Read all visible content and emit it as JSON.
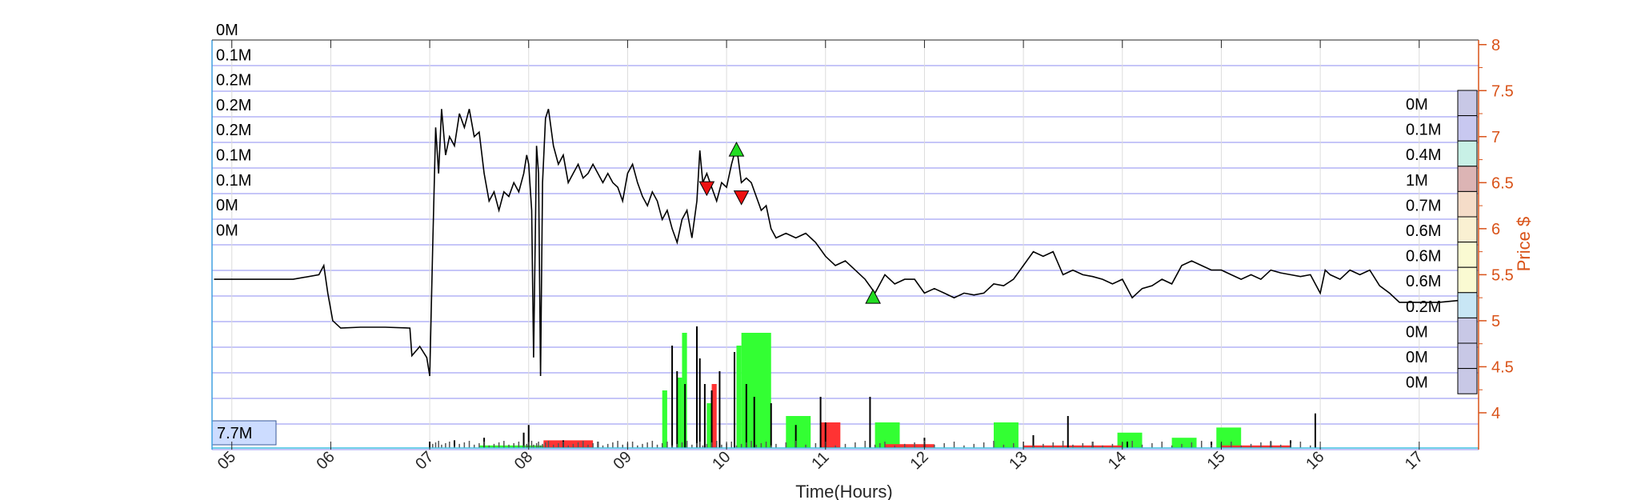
{
  "chart_data": {
    "type": "line",
    "title": "",
    "xlabel": "Time(Hours)",
    "ylabel": "Price $",
    "x_ticks": [
      "05",
      "06",
      "07",
      "08",
      "09",
      "10",
      "11",
      "12",
      "13",
      "14",
      "15",
      "16",
      "17"
    ],
    "x_range": [
      4.8,
      17.6
    ],
    "y_ticks": [
      "8",
      "7.5",
      "7",
      "6.5",
      "6",
      "5.5",
      "5",
      "4.5",
      "4"
    ],
    "y_range": [
      3.6,
      8.05
    ],
    "grid": true,
    "total_volume_label": "7.7M",
    "left_volume_labels": [
      "0M",
      "0.1M",
      "0.2M",
      "0.2M",
      "0.2M",
      "0.1M",
      "0.1M",
      "0M",
      "0M"
    ],
    "volume_profile": [
      {
        "label": "0M",
        "price": 7.35,
        "color": "#c8c8e6"
      },
      {
        "label": "0.1M",
        "price": 7.07,
        "color": "#c8c8f0"
      },
      {
        "label": "0.4M",
        "price": 6.79,
        "color": "#c8f0e6"
      },
      {
        "label": "1M",
        "price": 6.51,
        "color": "#dcb4b4"
      },
      {
        "label": "0.7M",
        "price": 6.23,
        "color": "#f5dcc8"
      },
      {
        "label": "0.6M",
        "price": 5.95,
        "color": "#faf0d2"
      },
      {
        "label": "0.6M",
        "price": 5.67,
        "color": "#fafad2"
      },
      {
        "label": "0.6M",
        "price": 5.39,
        "color": "#fafad2"
      },
      {
        "label": "0.2M",
        "price": 5.11,
        "color": "#c8e6f5"
      },
      {
        "label": "0M",
        "price": 4.83,
        "color": "#c8c8e6"
      },
      {
        "label": "0M",
        "price": 4.55,
        "color": "#c8c8e6"
      },
      {
        "label": "0M",
        "price": 4.27,
        "color": "#c8c8e6"
      }
    ],
    "price_series": {
      "name": "",
      "points": [
        [
          4.82,
          5.45
        ],
        [
          5.55,
          5.45
        ],
        [
          5.62,
          5.45
        ],
        [
          5.88,
          5.5
        ],
        [
          5.93,
          5.6
        ],
        [
          5.97,
          5.3
        ],
        [
          6.02,
          5.0
        ],
        [
          6.1,
          4.92
        ],
        [
          6.3,
          4.93
        ],
        [
          6.55,
          4.93
        ],
        [
          6.8,
          4.92
        ],
        [
          6.82,
          4.62
        ],
        [
          6.9,
          4.72
        ],
        [
          6.97,
          4.6
        ],
        [
          7.0,
          4.4
        ],
        [
          7.03,
          5.8
        ],
        [
          7.06,
          7.1
        ],
        [
          7.09,
          6.6
        ],
        [
          7.12,
          7.3
        ],
        [
          7.16,
          6.8
        ],
        [
          7.2,
          7.0
        ],
        [
          7.25,
          6.9
        ],
        [
          7.3,
          7.25
        ],
        [
          7.35,
          7.1
        ],
        [
          7.4,
          7.3
        ],
        [
          7.45,
          7.0
        ],
        [
          7.5,
          7.05
        ],
        [
          7.55,
          6.6
        ],
        [
          7.6,
          6.3
        ],
        [
          7.65,
          6.4
        ],
        [
          7.7,
          6.2
        ],
        [
          7.75,
          6.4
        ],
        [
          7.8,
          6.35
        ],
        [
          7.85,
          6.5
        ],
        [
          7.9,
          6.4
        ],
        [
          7.95,
          6.6
        ],
        [
          7.98,
          6.8
        ],
        [
          8.0,
          6.7
        ],
        [
          8.03,
          6.2
        ],
        [
          8.05,
          4.6
        ],
        [
          8.08,
          6.9
        ],
        [
          8.1,
          6.6
        ],
        [
          8.12,
          4.4
        ],
        [
          8.14,
          6.5
        ],
        [
          8.17,
          7.2
        ],
        [
          8.2,
          7.3
        ],
        [
          8.25,
          6.9
        ],
        [
          8.3,
          6.7
        ],
        [
          8.35,
          6.8
        ],
        [
          8.4,
          6.5
        ],
        [
          8.45,
          6.6
        ],
        [
          8.5,
          6.7
        ],
        [
          8.55,
          6.55
        ],
        [
          8.6,
          6.6
        ],
        [
          8.65,
          6.7
        ],
        [
          8.7,
          6.6
        ],
        [
          8.75,
          6.5
        ],
        [
          8.8,
          6.6
        ],
        [
          8.85,
          6.5
        ],
        [
          8.9,
          6.45
        ],
        [
          8.95,
          6.3
        ],
        [
          9.0,
          6.6
        ],
        [
          9.05,
          6.7
        ],
        [
          9.1,
          6.5
        ],
        [
          9.15,
          6.35
        ],
        [
          9.2,
          6.25
        ],
        [
          9.25,
          6.4
        ],
        [
          9.3,
          6.3
        ],
        [
          9.35,
          6.1
        ],
        [
          9.4,
          6.2
        ],
        [
          9.45,
          6.0
        ],
        [
          9.5,
          5.85
        ],
        [
          9.55,
          6.1
        ],
        [
          9.6,
          6.2
        ],
        [
          9.65,
          5.9
        ],
        [
          9.7,
          6.3
        ],
        [
          9.73,
          6.85
        ],
        [
          9.76,
          6.5
        ],
        [
          9.8,
          6.6
        ],
        [
          9.85,
          6.45
        ],
        [
          9.9,
          6.3
        ],
        [
          9.95,
          6.5
        ],
        [
          10.0,
          6.45
        ],
        [
          10.05,
          6.7
        ],
        [
          10.1,
          6.9
        ],
        [
          10.15,
          6.5
        ],
        [
          10.2,
          6.55
        ],
        [
          10.25,
          6.5
        ],
        [
          10.3,
          6.35
        ],
        [
          10.35,
          6.2
        ],
        [
          10.4,
          6.25
        ],
        [
          10.45,
          6.0
        ],
        [
          10.5,
          5.9
        ],
        [
          10.6,
          5.95
        ],
        [
          10.7,
          5.9
        ],
        [
          10.8,
          5.95
        ],
        [
          10.9,
          5.85
        ],
        [
          11.0,
          5.7
        ],
        [
          11.1,
          5.6
        ],
        [
          11.2,
          5.65
        ],
        [
          11.3,
          5.55
        ],
        [
          11.4,
          5.45
        ],
        [
          11.5,
          5.3
        ],
        [
          11.55,
          5.4
        ],
        [
          11.6,
          5.5
        ],
        [
          11.7,
          5.4
        ],
        [
          11.8,
          5.45
        ],
        [
          11.9,
          5.45
        ],
        [
          12.0,
          5.3
        ],
        [
          12.1,
          5.35
        ],
        [
          12.2,
          5.3
        ],
        [
          12.3,
          5.25
        ],
        [
          12.4,
          5.3
        ],
        [
          12.5,
          5.28
        ],
        [
          12.6,
          5.3
        ],
        [
          12.7,
          5.4
        ],
        [
          12.8,
          5.38
        ],
        [
          12.9,
          5.45
        ],
        [
          13.0,
          5.6
        ],
        [
          13.1,
          5.75
        ],
        [
          13.2,
          5.7
        ],
        [
          13.3,
          5.75
        ],
        [
          13.4,
          5.5
        ],
        [
          13.5,
          5.55
        ],
        [
          13.6,
          5.5
        ],
        [
          13.7,
          5.48
        ],
        [
          13.8,
          5.45
        ],
        [
          13.9,
          5.4
        ],
        [
          14.0,
          5.45
        ],
        [
          14.1,
          5.25
        ],
        [
          14.2,
          5.35
        ],
        [
          14.3,
          5.38
        ],
        [
          14.4,
          5.45
        ],
        [
          14.5,
          5.4
        ],
        [
          14.6,
          5.6
        ],
        [
          14.7,
          5.65
        ],
        [
          14.8,
          5.6
        ],
        [
          14.9,
          5.55
        ],
        [
          15.0,
          5.55
        ],
        [
          15.1,
          5.5
        ],
        [
          15.2,
          5.45
        ],
        [
          15.3,
          5.5
        ],
        [
          15.4,
          5.45
        ],
        [
          15.5,
          5.55
        ],
        [
          15.6,
          5.52
        ],
        [
          15.7,
          5.5
        ],
        [
          15.8,
          5.48
        ],
        [
          15.9,
          5.5
        ],
        [
          16.0,
          5.3
        ],
        [
          16.05,
          5.55
        ],
        [
          16.1,
          5.5
        ],
        [
          16.2,
          5.45
        ],
        [
          16.3,
          5.55
        ],
        [
          16.4,
          5.5
        ],
        [
          16.5,
          5.55
        ],
        [
          16.6,
          5.38
        ],
        [
          16.7,
          5.3
        ],
        [
          16.8,
          5.2
        ],
        [
          17.0,
          5.2
        ],
        [
          17.2,
          5.2
        ],
        [
          17.4,
          5.22
        ],
        [
          17.5,
          5.2
        ]
      ]
    },
    "buy_markers": [
      [
        10.1,
        6.85
      ],
      [
        11.48,
        5.25
      ]
    ],
    "sell_markers": [
      [
        9.8,
        6.45
      ],
      [
        10.15,
        6.35
      ]
    ],
    "volume_bars": {
      "green": [
        [
          7.5,
          8.6,
          0.02
        ],
        [
          9.35,
          9.4,
          0.45
        ],
        [
          9.5,
          9.55,
          0.55
        ],
        [
          9.55,
          9.6,
          0.9
        ],
        [
          9.8,
          9.85,
          0.35
        ],
        [
          10.1,
          10.15,
          0.8
        ],
        [
          10.15,
          10.45,
          0.9
        ],
        [
          10.6,
          10.85,
          0.25
        ],
        [
          11.5,
          11.75,
          0.2
        ],
        [
          12.7,
          12.95,
          0.2
        ],
        [
          13.95,
          14.2,
          0.12
        ],
        [
          14.5,
          14.75,
          0.08
        ],
        [
          14.95,
          15.2,
          0.16
        ]
      ],
      "red": [
        [
          8.15,
          8.65,
          0.06
        ],
        [
          9.85,
          9.9,
          0.5
        ],
        [
          10.95,
          11.15,
          0.2
        ],
        [
          11.6,
          12.1,
          0.03
        ],
        [
          13.0,
          14.0,
          0.02
        ],
        [
          15.0,
          15.7,
          0.02
        ]
      ],
      "black_spikes": [
        [
          7.0,
          0.05
        ],
        [
          7.25,
          0.06
        ],
        [
          7.55,
          0.08
        ],
        [
          7.95,
          0.12
        ],
        [
          8.0,
          0.18
        ],
        [
          8.35,
          0.06
        ],
        [
          8.7,
          0.05
        ],
        [
          9.45,
          0.8
        ],
        [
          9.5,
          0.6
        ],
        [
          9.58,
          0.5
        ],
        [
          9.7,
          0.95
        ],
        [
          9.73,
          0.7
        ],
        [
          9.78,
          0.5
        ],
        [
          9.85,
          0.45
        ],
        [
          9.93,
          0.6
        ],
        [
          10.08,
          0.75
        ],
        [
          10.2,
          0.5
        ],
        [
          10.28,
          0.4
        ],
        [
          10.45,
          0.35
        ],
        [
          10.7,
          0.18
        ],
        [
          10.95,
          0.4
        ],
        [
          11.0,
          0.2
        ],
        [
          11.45,
          0.4
        ],
        [
          12.0,
          0.08
        ],
        [
          13.1,
          0.1
        ],
        [
          13.45,
          0.25
        ],
        [
          13.7,
          0.05
        ],
        [
          14.05,
          0.05
        ],
        [
          14.9,
          0.05
        ],
        [
          15.5,
          0.05
        ],
        [
          15.95,
          0.27
        ],
        [
          15.7,
          0.06
        ]
      ]
    }
  }
}
